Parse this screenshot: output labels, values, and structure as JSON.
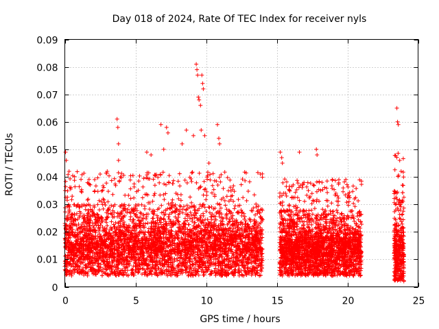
{
  "chart_data": {
    "type": "scatter",
    "title": "Day 018 of 2024, Rate Of TEC Index for receiver nyls",
    "xlabel": "GPS time / hours",
    "ylabel": "ROTI / TECUs",
    "xlim": [
      0,
      25
    ],
    "ylim": [
      0,
      0.09
    ],
    "x_ticks": [
      "0",
      "5",
      "10",
      "15",
      "20",
      "25"
    ],
    "y_ticks": [
      "0",
      "0.01",
      "0.02",
      "0.03",
      "0.04",
      "0.05",
      "0.06",
      "0.07",
      "0.08",
      "0.09"
    ],
    "grid": true,
    "marker": "+",
    "color": "#ff0000",
    "series": [
      {
        "values_note": "dense point cloud summarised by segments",
        "segments": [
          {
            "x_start": 0.0,
            "x_end": 14.0,
            "y_low": 0.004,
            "y_mid": 0.013,
            "y_high": 0.03
          },
          {
            "x_start": 15.2,
            "x_end": 21.0,
            "y_low": 0.004,
            "y_mid": 0.012,
            "y_high": 0.028
          },
          {
            "x_start": 23.3,
            "x_end": 24.0,
            "y_low": 0.002,
            "y_mid": 0.011,
            "y_high": 0.035
          }
        ],
        "peaks": [
          {
            "x": 0.05,
            "y": 0.049
          },
          {
            "x": 0.1,
            "y": 0.046
          },
          {
            "x": 0.3,
            "y": 0.042
          },
          {
            "x": 2.5,
            "y": 0.041
          },
          {
            "x": 3.0,
            "y": 0.042
          },
          {
            "x": 3.7,
            "y": 0.061
          },
          {
            "x": 3.75,
            "y": 0.058
          },
          {
            "x": 3.8,
            "y": 0.052
          },
          {
            "x": 3.8,
            "y": 0.046
          },
          {
            "x": 5.8,
            "y": 0.049
          },
          {
            "x": 6.1,
            "y": 0.048
          },
          {
            "x": 6.8,
            "y": 0.059
          },
          {
            "x": 7.2,
            "y": 0.058
          },
          {
            "x": 7.3,
            "y": 0.056
          },
          {
            "x": 7.0,
            "y": 0.05
          },
          {
            "x": 8.3,
            "y": 0.052
          },
          {
            "x": 8.6,
            "y": 0.057
          },
          {
            "x": 9.1,
            "y": 0.055
          },
          {
            "x": 9.3,
            "y": 0.081
          },
          {
            "x": 9.35,
            "y": 0.079
          },
          {
            "x": 9.4,
            "y": 0.077
          },
          {
            "x": 9.45,
            "y": 0.069
          },
          {
            "x": 9.5,
            "y": 0.068
          },
          {
            "x": 9.6,
            "y": 0.066
          },
          {
            "x": 9.7,
            "y": 0.077
          },
          {
            "x": 9.75,
            "y": 0.074
          },
          {
            "x": 9.8,
            "y": 0.072
          },
          {
            "x": 9.65,
            "y": 0.057
          },
          {
            "x": 9.9,
            "y": 0.055
          },
          {
            "x": 10.2,
            "y": 0.045
          },
          {
            "x": 10.8,
            "y": 0.059
          },
          {
            "x": 10.9,
            "y": 0.054
          },
          {
            "x": 10.95,
            "y": 0.052
          },
          {
            "x": 15.25,
            "y": 0.049
          },
          {
            "x": 15.35,
            "y": 0.047
          },
          {
            "x": 15.4,
            "y": 0.045
          },
          {
            "x": 16.6,
            "y": 0.049
          },
          {
            "x": 17.8,
            "y": 0.05
          },
          {
            "x": 17.85,
            "y": 0.048
          },
          {
            "x": 18.2,
            "y": 0.038
          },
          {
            "x": 19.7,
            "y": 0.036
          },
          {
            "x": 20.5,
            "y": 0.032
          },
          {
            "x": 23.5,
            "y": 0.065
          },
          {
            "x": 23.55,
            "y": 0.06
          },
          {
            "x": 23.6,
            "y": 0.059
          },
          {
            "x": 23.7,
            "y": 0.046
          },
          {
            "x": 23.8,
            "y": 0.042
          },
          {
            "x": 23.9,
            "y": 0.037
          }
        ],
        "gaps": [
          [
            14.0,
            15.2
          ],
          [
            21.0,
            23.3
          ]
        ]
      }
    ]
  }
}
